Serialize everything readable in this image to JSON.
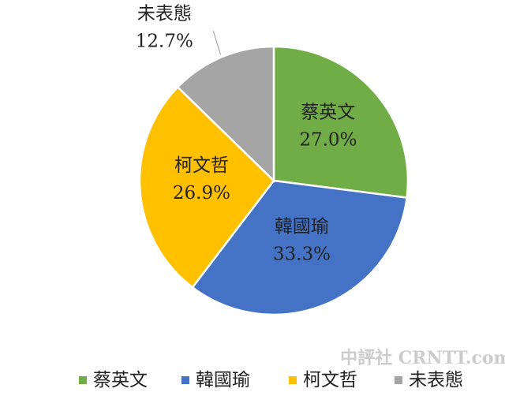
{
  "chart_data": {
    "type": "pie",
    "categories": [
      "蔡英文",
      "韓國瑜",
      "柯文哲",
      "未表態"
    ],
    "values": [
      27.0,
      33.3,
      26.9,
      12.7
    ],
    "value_labels": [
      "27.0%",
      "33.3%",
      "26.9%",
      "12.7%"
    ],
    "colors": [
      "#70ad47",
      "#4472c4",
      "#ffc000",
      "#a5a5a5"
    ],
    "legend": "bottom",
    "watermark": "中評社 CRNTT.com"
  }
}
